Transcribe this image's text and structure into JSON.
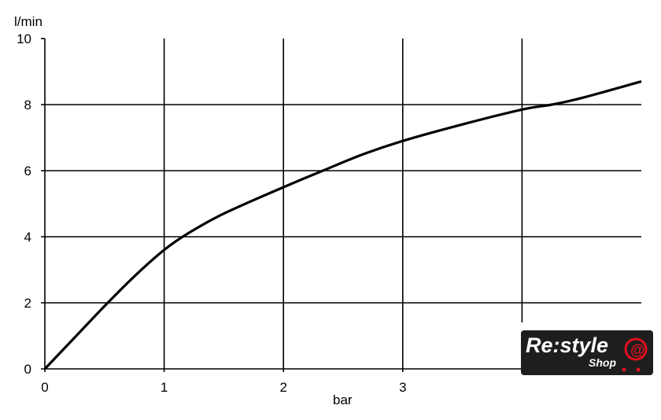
{
  "chart_data": {
    "type": "line",
    "title": "",
    "xlabel": "bar",
    "ylabel": "l/min",
    "xlim": [
      0,
      5
    ],
    "ylim": [
      0,
      10
    ],
    "x_ticks": [
      "0",
      "1",
      "2",
      "3"
    ],
    "y_ticks": [
      "0",
      "2",
      "4",
      "6",
      "8",
      "10"
    ],
    "grid": true,
    "series": [
      {
        "color": "#000000",
        "x": [
          0,
          0.25,
          0.5,
          0.75,
          1,
          1.2,
          1.5,
          2,
          2.33,
          2.67,
          3,
          3.5,
          4,
          4.25,
          4.5,
          5
        ],
        "y": [
          0,
          0.95,
          1.9,
          2.8,
          3.6,
          4.1,
          4.7,
          5.5,
          6.0,
          6.5,
          6.9,
          7.4,
          7.85,
          8.0,
          8.2,
          8.7
        ]
      }
    ]
  },
  "logo": {
    "text": "Re:style",
    "subtext": "Shop",
    "accent": "#e0101e"
  }
}
